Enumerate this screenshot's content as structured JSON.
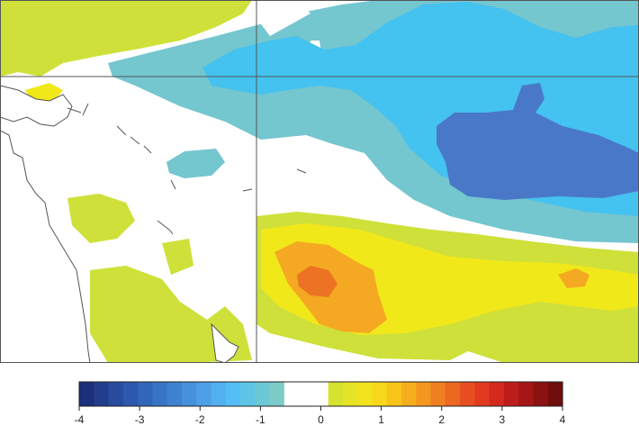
{
  "map": {
    "colors": {
      "dark_blue": "#4a78c8",
      "light_blue": "#44c2f0",
      "teal": "#74c6cf",
      "white": "#ffffff",
      "yellow_green": "#cfe03a",
      "yellow": "#f1e81a",
      "orange": "#f5a822",
      "dark_orange": "#ec7224",
      "coast": "#555555",
      "grid": "#555555"
    }
  },
  "colorbar": {
    "ticks": [
      "-4",
      "-3",
      "-2",
      "-1",
      "0",
      "1",
      "2",
      "3",
      "4"
    ],
    "range": [
      -4,
      4
    ],
    "colors": [
      "#1c2f7a",
      "#213d8c",
      "#284b9e",
      "#2d58ad",
      "#3266bb",
      "#3874c6",
      "#3f82d0",
      "#4690dc",
      "#4d9fe6",
      "#52aff0",
      "#55bff5",
      "#5fc5e6",
      "#6cc7d7",
      "#7bcbc8",
      "#ffffff",
      "#ffffff",
      "#ffffff",
      "#d5e22f",
      "#e6e426",
      "#f2e41c",
      "#f7d81a",
      "#f8c419",
      "#f7ae1c",
      "#f4971f",
      "#f07f21",
      "#ec6722",
      "#e74e21",
      "#e13a1f",
      "#d4291c",
      "#bd1d1a",
      "#a61616",
      "#8c1212",
      "#700e0e"
    ]
  }
}
